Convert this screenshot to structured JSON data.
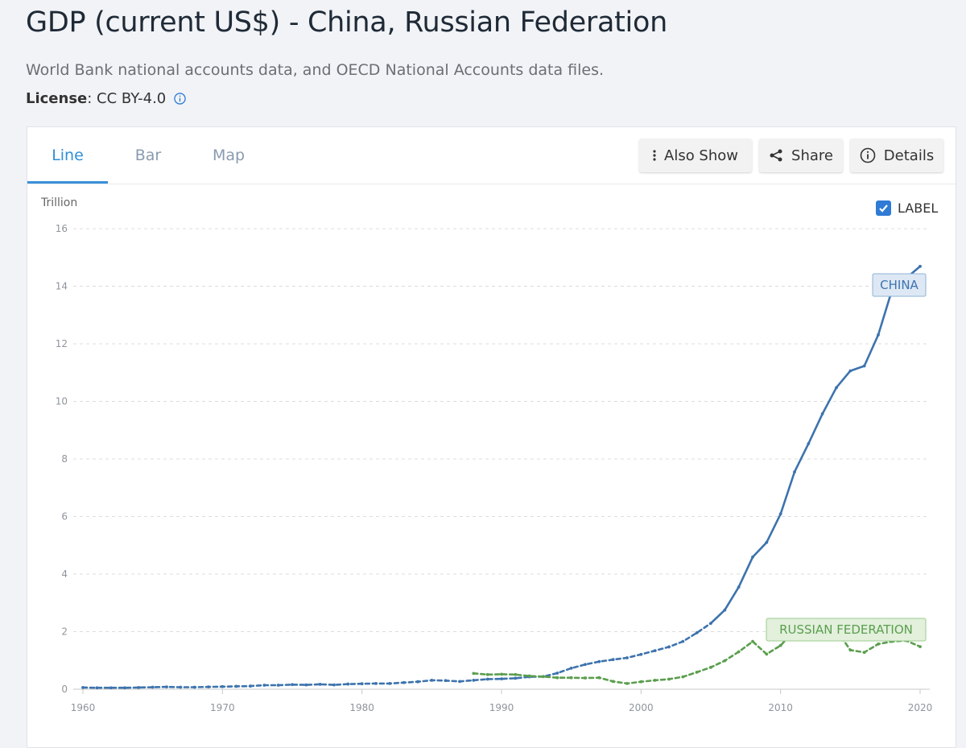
{
  "header": {
    "title": "GDP (current US$) - China, Russian Federation",
    "source": "World Bank national accounts data, and OECD National Accounts data files.",
    "license_key": "License",
    "license_value": " : CC BY-4.0"
  },
  "tabs": [
    {
      "label": "Line",
      "active": true
    },
    {
      "label": "Bar",
      "active": false
    },
    {
      "label": "Map",
      "active": false
    }
  ],
  "toolbar": {
    "also_show": "Also Show",
    "share": "Share",
    "details": "Details"
  },
  "label_toggle": {
    "text": "LABEL",
    "checked": true
  },
  "colors": {
    "china": "#3d73ad",
    "russia": "#5b9e4e",
    "grid": "#dcdcdc"
  },
  "chart_data": {
    "type": "line",
    "unit_label": "Trillion",
    "ylim": [
      0,
      16
    ],
    "yticks": [
      0,
      2,
      4,
      6,
      8,
      10,
      12,
      14,
      16
    ],
    "xlim": [
      1960,
      2020
    ],
    "xticks": [
      1960,
      1970,
      1980,
      1990,
      2000,
      2010,
      2020
    ],
    "grid": true,
    "series": [
      {
        "name": "CHINA",
        "x": [
          1960,
          1961,
          1962,
          1963,
          1964,
          1965,
          1966,
          1967,
          1968,
          1969,
          1970,
          1971,
          1972,
          1973,
          1974,
          1975,
          1976,
          1977,
          1978,
          1979,
          1980,
          1981,
          1982,
          1983,
          1984,
          1985,
          1986,
          1987,
          1988,
          1989,
          1990,
          1991,
          1992,
          1993,
          1994,
          1995,
          1996,
          1997,
          1998,
          1999,
          2000,
          2001,
          2002,
          2003,
          2004,
          2005,
          2006,
          2007,
          2008,
          2009,
          2010,
          2011,
          2012,
          2013,
          2014,
          2015,
          2016,
          2017,
          2018,
          2019,
          2020
        ],
        "y": [
          0.06,
          0.05,
          0.05,
          0.05,
          0.06,
          0.07,
          0.08,
          0.07,
          0.07,
          0.08,
          0.09,
          0.1,
          0.11,
          0.14,
          0.14,
          0.16,
          0.15,
          0.17,
          0.15,
          0.18,
          0.19,
          0.2,
          0.2,
          0.23,
          0.26,
          0.31,
          0.3,
          0.27,
          0.31,
          0.35,
          0.36,
          0.38,
          0.43,
          0.44,
          0.56,
          0.73,
          0.86,
          0.96,
          1.03,
          1.09,
          1.21,
          1.34,
          1.47,
          1.66,
          1.96,
          2.29,
          2.75,
          3.55,
          4.59,
          5.1,
          6.09,
          7.55,
          8.53,
          9.57,
          10.48,
          11.06,
          11.23,
          12.31,
          13.89,
          14.28,
          14.69
        ]
      },
      {
        "name": "RUSSIAN FEDERATION",
        "x": [
          1988,
          1989,
          1990,
          1991,
          1992,
          1993,
          1994,
          1995,
          1996,
          1997,
          1998,
          1999,
          2000,
          2001,
          2002,
          2003,
          2004,
          2005,
          2006,
          2007,
          2008,
          2009,
          2010,
          2011,
          2012,
          2013,
          2014,
          2015,
          2016,
          2017,
          2018,
          2019,
          2020
        ],
        "y": [
          0.55,
          0.51,
          0.52,
          0.51,
          0.46,
          0.44,
          0.4,
          0.4,
          0.39,
          0.4,
          0.27,
          0.2,
          0.26,
          0.31,
          0.35,
          0.43,
          0.59,
          0.76,
          0.99,
          1.3,
          1.66,
          1.22,
          1.52,
          2.05,
          2.21,
          2.29,
          2.06,
          1.36,
          1.28,
          1.57,
          1.66,
          1.69,
          1.48
        ]
      }
    ]
  }
}
